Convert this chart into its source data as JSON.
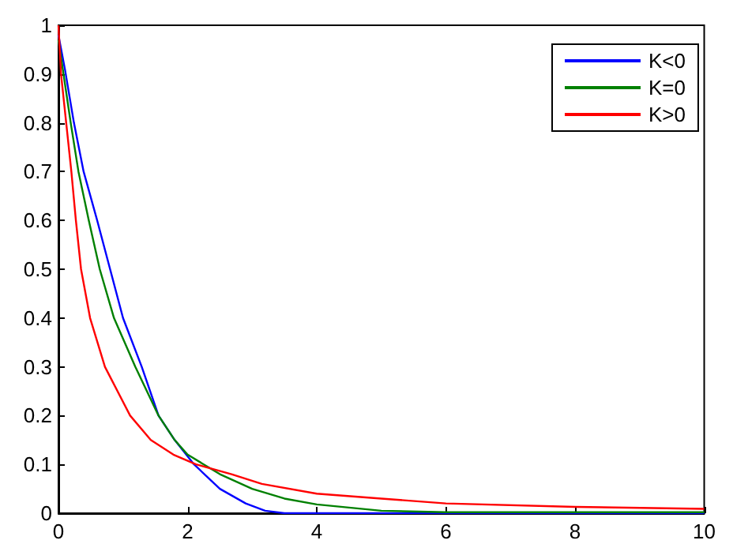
{
  "chart_data": {
    "type": "line",
    "xlim": [
      0,
      10
    ],
    "ylim": [
      0,
      1
    ],
    "xticks": [
      0,
      2,
      4,
      6,
      8,
      10
    ],
    "yticks": [
      0,
      0.1,
      0.2,
      0.3,
      0.4,
      0.5,
      0.6,
      0.7,
      0.8,
      0.9,
      1
    ],
    "grid": false,
    "legend": "top right",
    "marker": "none",
    "line_style": "solid",
    "series": [
      {
        "name": "K<0",
        "color": "#0000ff",
        "x": [
          0,
          0.1,
          0.24,
          0.39,
          0.6,
          0.8,
          1.0,
          1.29,
          1.55,
          1.8,
          2.1,
          2.5,
          2.9,
          3.2,
          3.5,
          4,
          10
        ],
        "values": [
          0.98,
          0.91,
          0.8,
          0.7,
          0.6,
          0.5,
          0.4,
          0.3,
          0.2,
          0.15,
          0.1,
          0.05,
          0.02,
          0.005,
          0,
          0,
          0
        ]
      },
      {
        "name": "K=0",
        "color": "#008000",
        "x": [
          0,
          0.19,
          0.31,
          0.47,
          0.64,
          0.86,
          1.19,
          1.55,
          1.8,
          2.0,
          2.5,
          3.0,
          3.5,
          4,
          5,
          6,
          8,
          10
        ],
        "values": [
          0.97,
          0.8,
          0.7,
          0.6,
          0.5,
          0.4,
          0.3,
          0.2,
          0.15,
          0.12,
          0.08,
          0.05,
          0.03,
          0.018,
          0.005,
          0.002,
          0.002,
          0.002
        ]
      },
      {
        "name": "K>0",
        "color": "#ff0000",
        "x": [
          0,
          0.04,
          0.12,
          0.2,
          0.27,
          0.35,
          0.49,
          0.72,
          1.11,
          1.43,
          1.78,
          2.13,
          2.68,
          3.15,
          4,
          5,
          6,
          8,
          10
        ],
        "values": [
          1.0,
          0.9,
          0.8,
          0.7,
          0.6,
          0.5,
          0.4,
          0.3,
          0.2,
          0.15,
          0.12,
          0.1,
          0.08,
          0.06,
          0.04,
          0.03,
          0.02,
          0.013,
          0.009
        ]
      }
    ]
  }
}
